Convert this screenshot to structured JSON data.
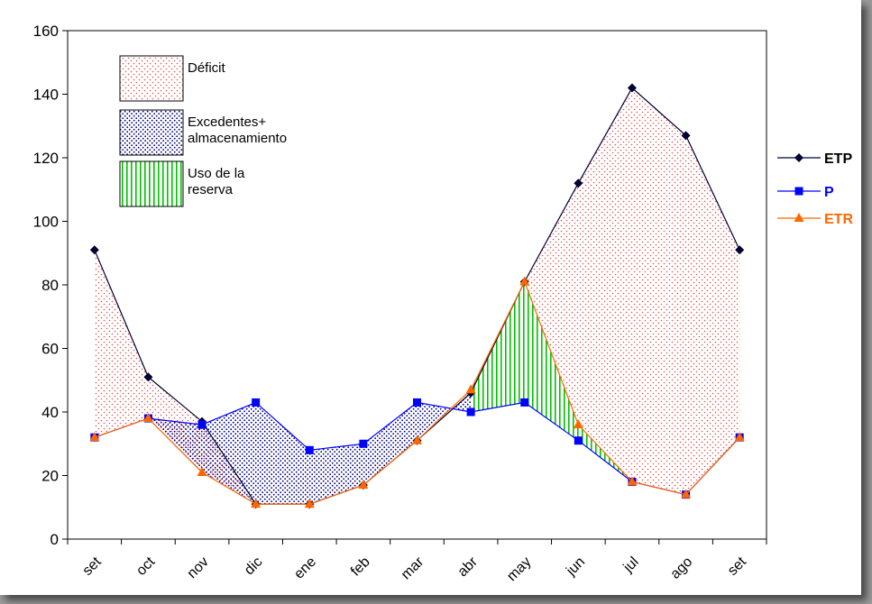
{
  "chart_data": {
    "type": "line",
    "categories": [
      "set",
      "oct",
      "nov",
      "dic",
      "ene",
      "feb",
      "mar",
      "abr",
      "may",
      "jun",
      "jul",
      "ago",
      "set"
    ],
    "ylim": [
      0,
      160
    ],
    "yticks": [
      0,
      20,
      40,
      60,
      80,
      100,
      120,
      140,
      160
    ],
    "grid": false,
    "legend_position": "right",
    "series": [
      {
        "name": "ETP",
        "color": "#000033",
        "marker": "diamond",
        "values": [
          91,
          51,
          37,
          11,
          11,
          17,
          31,
          46,
          81,
          112,
          142,
          127,
          91
        ]
      },
      {
        "name": "P",
        "color": "#0000ff",
        "marker": "square",
        "values": [
          32,
          38,
          36,
          43,
          28,
          30,
          43,
          40,
          43,
          31,
          18,
          14,
          32
        ]
      },
      {
        "name": "ETR",
        "color": "#ff6600",
        "marker": "triangle",
        "values": [
          32,
          38,
          21,
          11,
          11,
          17,
          31,
          47,
          81,
          36,
          18,
          14,
          32
        ]
      }
    ],
    "area_legend": [
      {
        "label": "Déficit",
        "pattern": "dots",
        "color": "#e05050"
      },
      {
        "label": "Excedentes+\nalmacenamiento",
        "pattern": "dots",
        "color": "#000080"
      },
      {
        "label": "Uso de la\nreserva",
        "pattern": "vertical-lines",
        "color": "#00cc00"
      }
    ]
  }
}
